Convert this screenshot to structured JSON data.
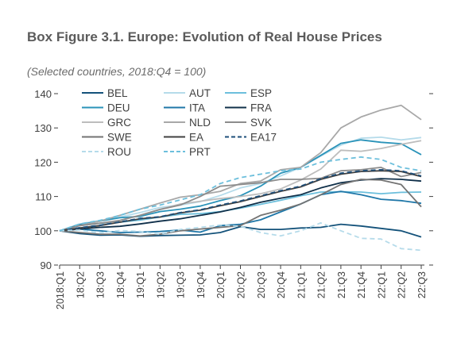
{
  "header": {
    "title": "Box Figure 3.1. Europe: Evolution of Real House Prices",
    "subtitle": "(Selected countries, 2018:Q4 = 100)"
  },
  "chart_data": {
    "type": "line",
    "ylim": [
      90,
      140
    ],
    "y_ticks": [
      90,
      100,
      110,
      120,
      130,
      140
    ],
    "grid": false,
    "legend_position": "top-left",
    "categories": [
      "2018:Q1",
      "18:Q2",
      "18:Q3",
      "18:Q4",
      "19:Q1",
      "19:Q2",
      "19:Q3",
      "19:Q4",
      "20:Q1",
      "20:Q2",
      "20:Q3",
      "20:Q4",
      "21:Q1",
      "21:Q2",
      "21:Q3",
      "21:Q4",
      "22:Q1",
      "22:Q2",
      "22:Q3"
    ],
    "series": [
      {
        "name": "BEL",
        "color": "#14527a",
        "dash": "",
        "values": [
          100,
          99.2,
          98.7,
          98.8,
          98.4,
          98.6,
          98.7,
          98.8,
          99.5,
          101.2,
          100.4,
          100.4,
          100.8,
          101.0,
          101.9,
          101.4,
          100.7,
          100.0,
          98.2
        ]
      },
      {
        "name": "AUT",
        "color": "#b5dbea",
        "dash": "",
        "values": [
          100,
          102.0,
          103.0,
          104.0,
          105.3,
          106.8,
          107.5,
          108.5,
          110.3,
          112.5,
          113.8,
          116.0,
          118.5,
          121.8,
          125.0,
          127.0,
          127.3,
          126.5,
          127.2
        ]
      },
      {
        "name": "ESP",
        "color": "#6cbfdc",
        "dash": "",
        "values": [
          100,
          101.5,
          102.2,
          102.5,
          103.1,
          104.0,
          104.8,
          105.0,
          105.6,
          106.6,
          107.7,
          108.9,
          110.2,
          111.3,
          111.4,
          111.3,
          110.8,
          111.2,
          111.3
        ]
      },
      {
        "name": "DEU",
        "color": "#2a93b9",
        "dash": "",
        "values": [
          100,
          101.8,
          102.8,
          103.8,
          104.2,
          105.6,
          106.3,
          107.2,
          108.8,
          110.2,
          113.0,
          116.8,
          118.5,
          122.0,
          125.5,
          126.5,
          125.8,
          125.4,
          122.2
        ]
      },
      {
        "name": "ITA",
        "color": "#1f77a8",
        "dash": "",
        "values": [
          100,
          100.5,
          100.0,
          99.5,
          99.6,
          99.8,
          100.2,
          99.6,
          101.5,
          101.9,
          103.2,
          105.5,
          107.8,
          110.5,
          111.5,
          110.5,
          109.2,
          108.8,
          108.0
        ]
      },
      {
        "name": "FRA",
        "color": "#10304a",
        "dash": "",
        "values": [
          100,
          100.5,
          101.0,
          101.3,
          102.0,
          102.8,
          103.5,
          104.5,
          105.5,
          106.8,
          108.3,
          109.5,
          110.5,
          112.5,
          114.0,
          114.8,
          115.2,
          115.0,
          114.5
        ]
      },
      {
        "name": "GRC",
        "color": "#bdbdbd",
        "dash": "",
        "values": [
          100,
          100.8,
          101.5,
          103.0,
          104.5,
          106.3,
          107.8,
          108.6,
          109.4,
          110.0,
          110.8,
          112.2,
          114.8,
          118.0,
          123.5,
          123.2,
          124.0,
          125.2,
          126.3
        ]
      },
      {
        "name": "NLD",
        "color": "#a8a8a8",
        "dash": "",
        "values": [
          100,
          101.5,
          102.8,
          104.5,
          106.3,
          108.1,
          109.8,
          110.5,
          111.5,
          113.8,
          114.5,
          117.8,
          118.5,
          122.8,
          130.0,
          133.2,
          135.2,
          136.6,
          132.4
        ]
      },
      {
        "name": "SVK",
        "color": "#8c8c8c",
        "dash": "",
        "values": [
          100,
          101.5,
          102.2,
          103.0,
          104.5,
          106.2,
          107.5,
          110.0,
          113.0,
          113.5,
          114.0,
          115.0,
          115.0,
          115.3,
          117.5,
          117.8,
          118.5,
          115.8,
          117.0
        ]
      },
      {
        "name": "SWE",
        "color": "#737373",
        "dash": "",
        "values": [
          100,
          99.5,
          99.0,
          99.0,
          98.5,
          99.0,
          100.0,
          100.5,
          101.0,
          101.5,
          104.5,
          106.0,
          107.8,
          110.5,
          113.5,
          115.0,
          114.8,
          113.5,
          107.0
        ]
      },
      {
        "name": "EA",
        "color": "#404040",
        "dash": "",
        "values": [
          100,
          100.8,
          101.5,
          102.5,
          103.5,
          104.0,
          105.2,
          106.0,
          107.3,
          108.5,
          110.0,
          111.5,
          112.8,
          115.0,
          116.5,
          117.3,
          117.5,
          117.3,
          115.8
        ]
      },
      {
        "name": "EA17",
        "color": "#1e4f7a",
        "dash": "6,4",
        "values": [
          100,
          100.9,
          101.6,
          102.6,
          103.6,
          104.1,
          105.3,
          106.1,
          107.5,
          108.7,
          110.2,
          111.7,
          113.0,
          115.2,
          116.8,
          117.5,
          117.8,
          117.5,
          116.0
        ]
      },
      {
        "name": "ROU",
        "color": "#b5dbea",
        "dash": "6,4",
        "values": [
          100,
          100.2,
          99.4,
          100.1,
          99.8,
          99.0,
          100.4,
          101.0,
          101.7,
          101.3,
          99.5,
          98.5,
          100.0,
          102.3,
          100.0,
          97.8,
          97.6,
          94.8,
          94.3
        ]
      },
      {
        "name": "PRT",
        "color": "#6cbfdc",
        "dash": "6,4",
        "values": [
          100,
          102.0,
          103.0,
          104.5,
          106.3,
          107.5,
          109.0,
          110.5,
          113.8,
          115.5,
          116.5,
          117.5,
          118.0,
          120.0,
          120.8,
          121.5,
          120.8,
          118.5,
          117.5
        ]
      }
    ]
  }
}
